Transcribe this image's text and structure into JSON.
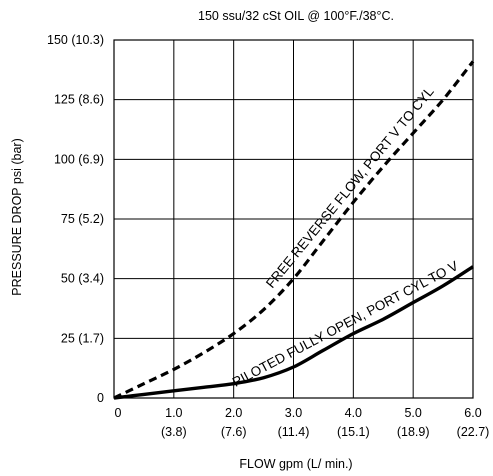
{
  "chart_data": {
    "type": "line",
    "title": "150 ssu/32 cSt OIL @ 100°F./38°C.",
    "xlabel": "FLOW gpm (L/ min.)",
    "ylabel": "PRESSURE DROP psi (bar)",
    "xlim": [
      0,
      6
    ],
    "ylim": [
      0,
      150
    ],
    "grid": true,
    "legend": "none",
    "x_ticks": [
      {
        "value": 0,
        "label": "0",
        "sub": ""
      },
      {
        "value": 1,
        "label": "1.0",
        "sub": "(3.8)"
      },
      {
        "value": 2,
        "label": "2.0",
        "sub": "(7.6)"
      },
      {
        "value": 3,
        "label": "3.0",
        "sub": "(11.4)"
      },
      {
        "value": 4,
        "label": "4.0",
        "sub": "(15.1)"
      },
      {
        "value": 5,
        "label": "5.0",
        "sub": "(18.9)"
      },
      {
        "value": 6,
        "label": "6.0",
        "sub": "(22.7)"
      }
    ],
    "y_ticks": [
      {
        "value": 0,
        "label": "0"
      },
      {
        "value": 25,
        "label": "25 (1.7)"
      },
      {
        "value": 50,
        "label": "50 (3.4)"
      },
      {
        "value": 75,
        "label": "75 (5.2)"
      },
      {
        "value": 100,
        "label": "100 (6.9)"
      },
      {
        "value": 125,
        "label": "125 (8.6)"
      },
      {
        "value": 150,
        "label": "150 (10.3)"
      }
    ],
    "series": [
      {
        "name": "FREE REVERSE FLOW, PORT V TO CYL",
        "style": "dashed",
        "x": [
          0,
          0.5,
          1.0,
          1.5,
          2.0,
          2.5,
          3.0,
          3.5,
          4.0,
          4.5,
          5.0,
          5.5,
          6.0
        ],
        "y": [
          0,
          6,
          12,
          19,
          27,
          37,
          50,
          66,
          82,
          97,
          111,
          125,
          141
        ]
      },
      {
        "name": "PILOTED FULLY OPEN, PORT CYL TO V",
        "style": "solid",
        "x": [
          0,
          0.5,
          1.0,
          1.5,
          2.0,
          2.5,
          3.0,
          3.5,
          4.0,
          4.5,
          5.0,
          5.5,
          6.0
        ],
        "y": [
          0,
          1.5,
          3,
          4.5,
          6,
          8.5,
          13,
          20,
          27,
          33,
          40,
          47,
          55
        ]
      }
    ]
  }
}
